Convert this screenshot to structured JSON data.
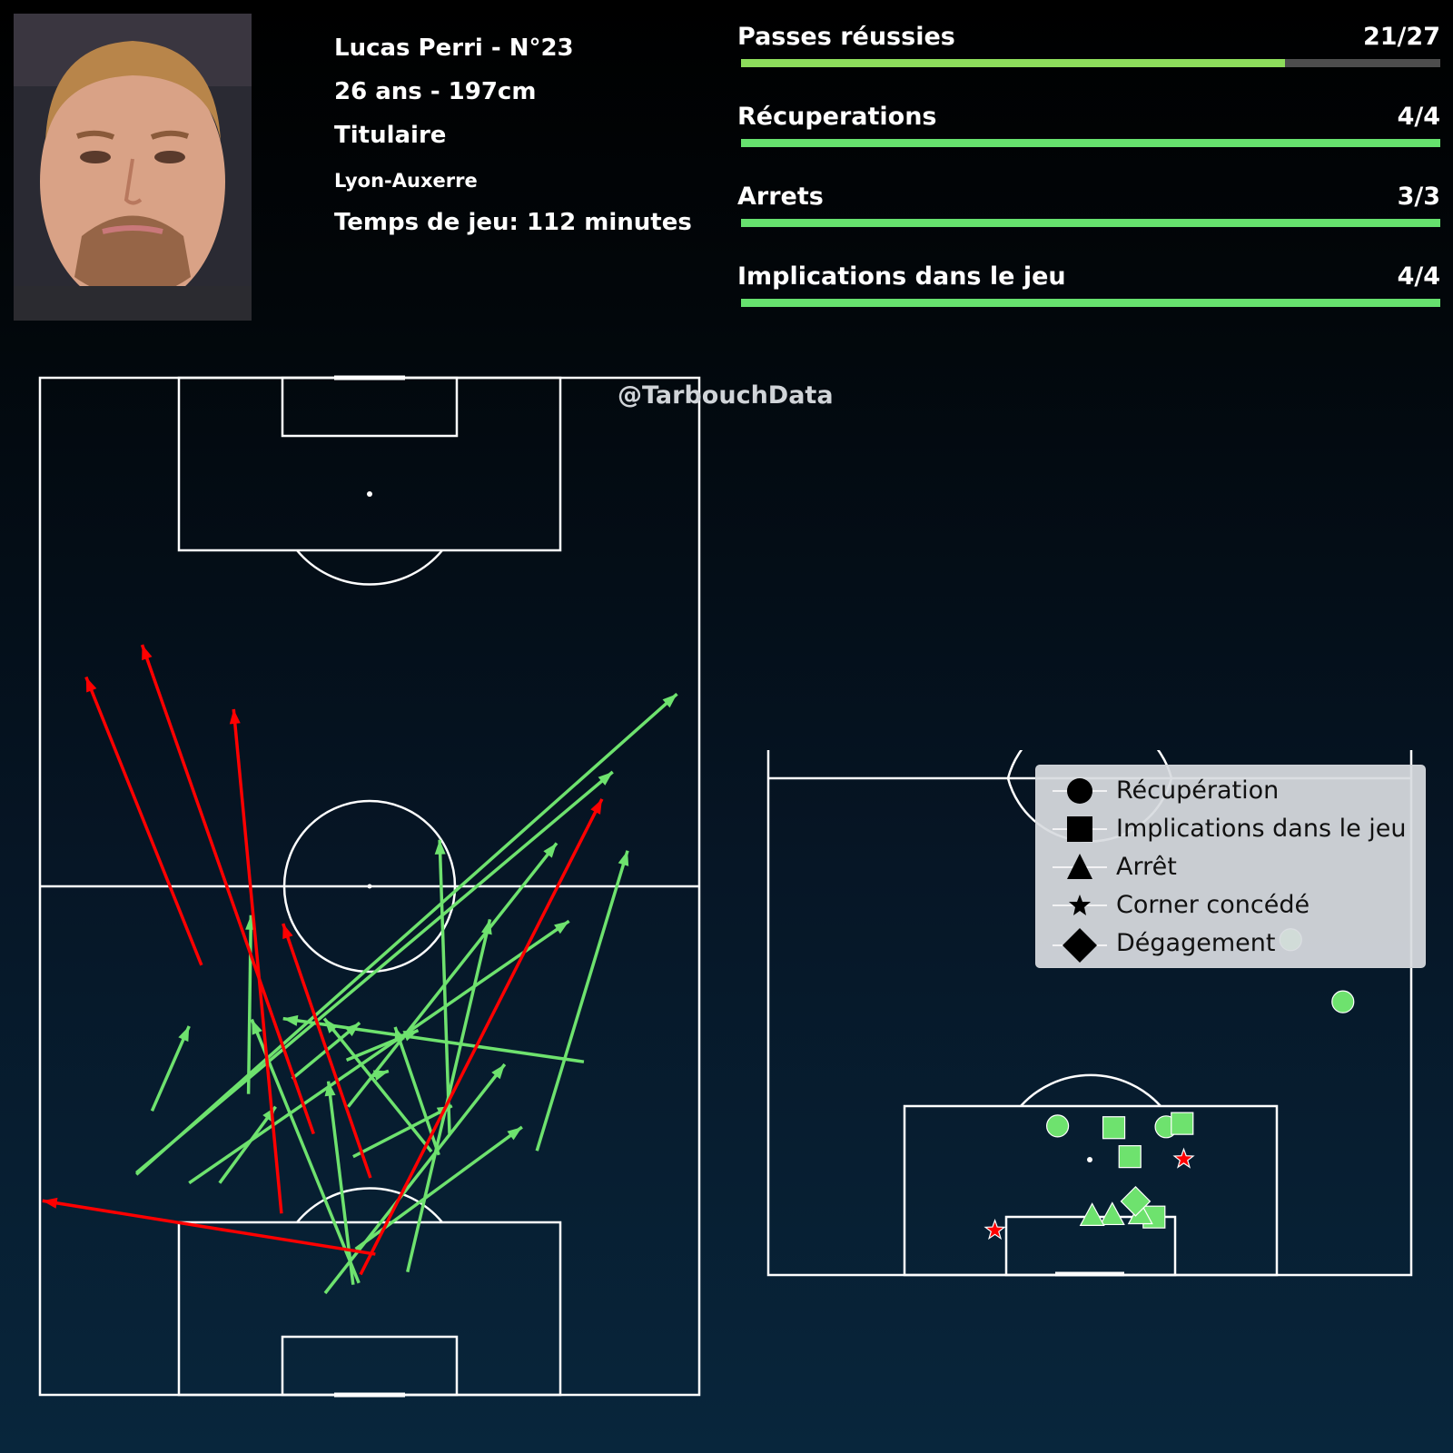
{
  "player": {
    "name_line": "Lucas Perri - N°23",
    "age_height": "26 ans - 197cm",
    "status": "Titulaire",
    "match": "Lyon-Auxerre",
    "playing_time": "Temps de jeu: 112 minutes"
  },
  "stats": [
    {
      "label": "Passes réussies",
      "value": "21/27",
      "fraction": 0.7778,
      "color": "#8ddc5b"
    },
    {
      "label": "Récuperations",
      "value": "4/4",
      "fraction": 1.0,
      "color": "#66e16e"
    },
    {
      "label": "Arrets",
      "value": "3/3",
      "fraction": 1.0,
      "color": "#66e16e"
    },
    {
      "label": "Implications dans le jeu",
      "value": "4/4",
      "fraction": 1.0,
      "color": "#66e16e"
    }
  ],
  "watermark": "@TarbouchData",
  "legend": [
    {
      "marker": "circle",
      "label": "Récupération"
    },
    {
      "marker": "square",
      "label": "Implications dans le jeu"
    },
    {
      "marker": "triangle",
      "label": "Arrêt"
    },
    {
      "marker": "star",
      "label": "Corner concédé"
    },
    {
      "marker": "diamond",
      "label": "Dégagement"
    }
  ],
  "colors": {
    "success": "#6ee26e",
    "fail": "#ff0000",
    "lines": "#ffffff"
  },
  "chart_data": [
    {
      "type": "pass-map",
      "pitch": {
        "length": 120,
        "width": 80
      },
      "passes_successful": [
        {
          "x0": 26.0,
          "y0": 11.7,
          "x1": 82.7,
          "y1": 77.3
        },
        {
          "x0": 26.2,
          "y0": 11.7,
          "x1": 73.5,
          "y1": 69.5
        },
        {
          "x0": 25.0,
          "y0": 18.1,
          "x1": 55.9,
          "y1": 64.2
        },
        {
          "x0": 34.0,
          "y0": 37.4,
          "x1": 65.1,
          "y1": 62.7
        },
        {
          "x0": 12.0,
          "y0": 34.6,
          "x1": 39.0,
          "y1": 56.4
        },
        {
          "x0": 14.5,
          "y0": 44.6,
          "x1": 56.1,
          "y1": 54.6
        },
        {
          "x0": 30.8,
          "y0": 49.7,
          "x1": 65.5,
          "y1": 48.5
        },
        {
          "x0": 35.5,
          "y0": 25.3,
          "x1": 56.6,
          "y1": 25.6
        },
        {
          "x0": 37.5,
          "y0": 40.0,
          "x1": 38.2,
          "y1": 42.3
        },
        {
          "x0": 37.3,
          "y0": 30.6,
          "x1": 43.9,
          "y1": 38.8
        },
        {
          "x0": 39.5,
          "y0": 37.2,
          "x1": 43.0,
          "y1": 45.9
        },
        {
          "x0": 28.3,
          "y0": 48.4,
          "x1": 43.4,
          "y1": 43.1
        },
        {
          "x0": 28.7,
          "y0": 47.5,
          "x1": 44.4,
          "y1": 34.5
        },
        {
          "x0": 13.0,
          "y0": 38.0,
          "x1": 37.0,
          "y1": 35.0
        },
        {
          "x0": 13.2,
          "y0": 38.7,
          "x1": 44.3,
          "y1": 25.7
        },
        {
          "x0": 17.2,
          "y0": 38.3,
          "x1": 31.6,
          "y1": 58.5
        },
        {
          "x0": 39.3,
          "y0": 66.0,
          "x1": 44.4,
          "y1": 29.5
        },
        {
          "x0": 28.8,
          "y0": 60.3,
          "x1": 64.2,
          "y1": 71.3
        },
        {
          "x0": 33.5,
          "y0": 13.6,
          "x1": 43.5,
          "y1": 18.1
        },
        {
          "x0": 25.0,
          "y0": 21.8,
          "x1": 34.0,
          "y1": 28.6
        },
        {
          "x0": 28.1,
          "y0": 38.0,
          "x1": 34.1,
          "y1": 50.0
        }
      ],
      "passes_failed": [
        {
          "x0": 30.8,
          "y0": 33.2,
          "x1": 88.5,
          "y1": 12.4
        },
        {
          "x0": 21.4,
          "y0": 29.3,
          "x1": 80.9,
          "y1": 23.5
        },
        {
          "x0": 50.7,
          "y0": 19.6,
          "x1": 84.7,
          "y1": 5.6
        },
        {
          "x0": 14.2,
          "y0": 38.9,
          "x1": 70.3,
          "y1": 68.2
        },
        {
          "x0": 25.6,
          "y0": 40.1,
          "x1": 55.6,
          "y1": 29.5
        },
        {
          "x0": 16.6,
          "y0": 40.7,
          "x1": 22.9,
          "y1": 0.3
        }
      ],
      "passes_total": 27,
      "passes_completed": 21
    },
    {
      "type": "scatter",
      "pitch_half": {
        "x_range": [
          60,
          120
        ],
        "width": 80
      },
      "events": [
        {
          "type": "Récupération",
          "x": 79.5,
          "y": 65.0
        },
        {
          "type": "Récupération",
          "x": 87.0,
          "y": 71.5
        },
        {
          "type": "Récupération",
          "x": 102.0,
          "y": 36.0
        },
        {
          "type": "Récupération",
          "x": 102.1,
          "y": 49.5
        },
        {
          "type": "Implications dans le jeu",
          "x": 101.7,
          "y": 51.5
        },
        {
          "type": "Implications dans le jeu",
          "x": 102.2,
          "y": 43.0
        },
        {
          "type": "Implications dans le jeu",
          "x": 105.7,
          "y": 45.0
        },
        {
          "type": "Implications dans le jeu",
          "x": 113.0,
          "y": 48.0
        },
        {
          "type": "Arrêt",
          "x": 112.7,
          "y": 42.8
        },
        {
          "type": "Arrêt",
          "x": 112.8,
          "y": 40.3
        },
        {
          "type": "Arrêt",
          "x": 112.6,
          "y": 46.3
        },
        {
          "type": "Corner concédé",
          "x": 106.0,
          "y": 51.7
        },
        {
          "type": "Corner concédé",
          "x": 114.6,
          "y": 28.2
        },
        {
          "type": "Dégagement",
          "x": 111.1,
          "y": 45.7
        }
      ]
    }
  ]
}
